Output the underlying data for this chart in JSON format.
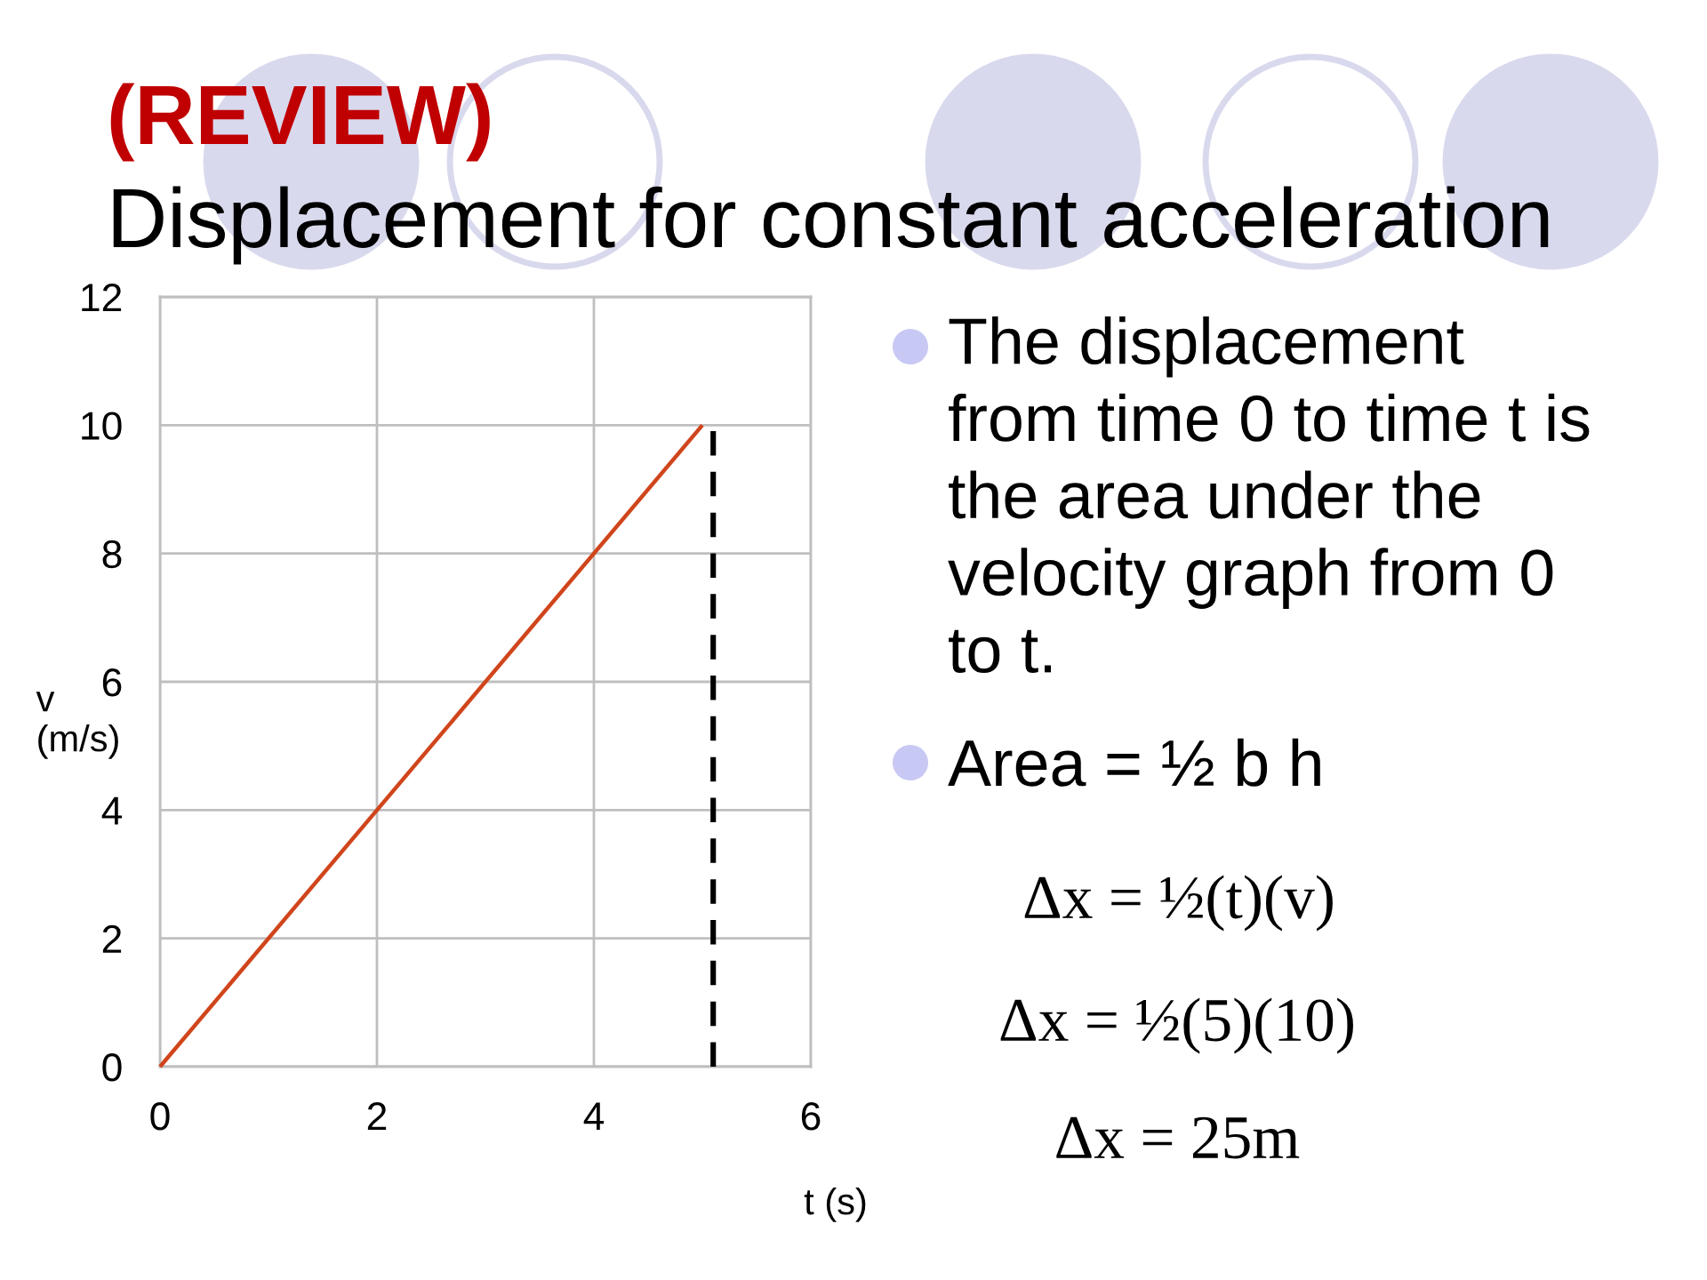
{
  "chart_data": {
    "type": "line",
    "title": "(REVIEW)",
    "subtitle": "Displacement for constant acceleration",
    "xlabel": "t (s)",
    "ylabel": "v\n(m/s)",
    "series": [
      {
        "x": [
          0,
          5
        ],
        "values": [
          0,
          10
        ],
        "color": "#d0451b"
      },
      {
        "x": [
          5.1,
          5.1
        ],
        "values": [
          0,
          10
        ],
        "color": "#000000",
        "line_style": "dashed"
      }
    ],
    "xlim": [
      0,
      6
    ],
    "ylim": [
      0,
      12
    ],
    "xticks": [
      0,
      2,
      4,
      6
    ],
    "yticks": [
      0,
      2,
      4,
      6,
      8,
      10,
      12
    ],
    "grid": true,
    "annotations": [
      "The displacement\nfrom time 0 to time t is\nthe area under the\nvelocity graph from 0\nto t.",
      "Area = ½ b h",
      "Δx = ½(t)(v)",
      "Δx = ½(5)(10)",
      "Δx = 25m"
    ]
  }
}
